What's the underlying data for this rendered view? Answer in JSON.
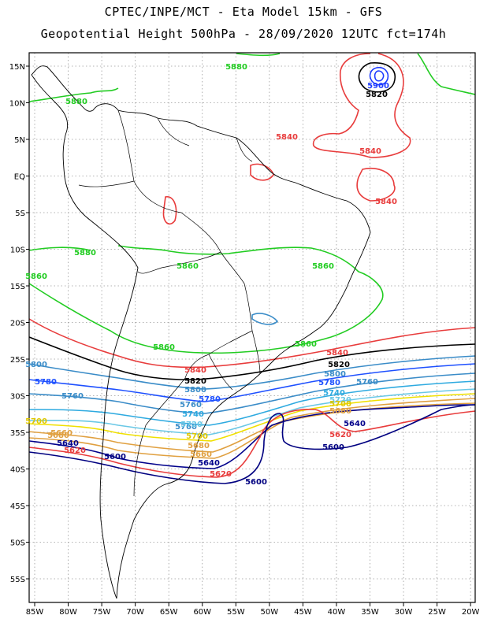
{
  "header": {
    "title_line1": "CPTEC/INPE/MCT -  Eta Model 15km - GFS",
    "title_line2": "Geopotential Height 500hPa - 28/09/2020 12UTC fct=174h"
  },
  "map": {
    "lon_labels": [
      "85W",
      "80W",
      "75W",
      "70W",
      "65W",
      "60W",
      "55W",
      "50W",
      "45W",
      "40W",
      "35W",
      "30W",
      "25W",
      "20W"
    ],
    "lat_labels": [
      "15N",
      "10N",
      "5N",
      "EQ",
      "5S",
      "10S",
      "15S",
      "20S",
      "25S",
      "30S",
      "35S",
      "40S",
      "45S",
      "50S",
      "55S"
    ],
    "grid": "dotted",
    "colors": {
      "5900": "#1e3cff",
      "5880": "#22cc22",
      "5860": "#22cc22",
      "5840": "#e83c3c",
      "5820": "#000000",
      "5800": "#3a8cc8",
      "5780": "#1e50ff",
      "5760": "#3a8cc8",
      "5740": "#2eaae0",
      "5720": "#6ac8e6",
      "5700": "#f0e000",
      "5680": "#e0a040",
      "5660": "#e0a040",
      "5640": "#00008b",
      "5620": "#e83c3c",
      "5600": "#000080",
      "coast": "#000000"
    },
    "contour_labels": [
      {
        "text": "5880",
        "color": "#22cc22"
      },
      {
        "text": "5880",
        "color": "#22cc22"
      },
      {
        "text": "5880",
        "color": "#22cc22"
      },
      {
        "text": "5860",
        "color": "#22cc22"
      },
      {
        "text": "5860",
        "color": "#22cc22"
      },
      {
        "text": "5860",
        "color": "#22cc22"
      },
      {
        "text": "5860",
        "color": "#22cc22"
      },
      {
        "text": "5860",
        "color": "#22cc22"
      },
      {
        "text": "5840",
        "color": "#e83c3c"
      },
      {
        "text": "5840",
        "color": "#e83c3c"
      },
      {
        "text": "5840",
        "color": "#e83c3c"
      },
      {
        "text": "5840",
        "color": "#e83c3c"
      },
      {
        "text": "5840",
        "color": "#e83c3c"
      },
      {
        "text": "5900",
        "color": "#1e3cff"
      },
      {
        "text": "5820",
        "color": "#000000"
      },
      {
        "text": "5820",
        "color": "#000000"
      },
      {
        "text": "5820",
        "color": "#000000"
      },
      {
        "text": "5800",
        "color": "#3a8cc8"
      },
      {
        "text": "5800",
        "color": "#3a8cc8"
      },
      {
        "text": "5800",
        "color": "#3a8cc8"
      },
      {
        "text": "5780",
        "color": "#1e50ff"
      },
      {
        "text": "5780",
        "color": "#1e50ff"
      },
      {
        "text": "5780",
        "color": "#1e50ff"
      },
      {
        "text": "5760",
        "color": "#3a8cc8"
      },
      {
        "text": "5760",
        "color": "#3a8cc8"
      },
      {
        "text": "5760",
        "color": "#3a8cc8"
      },
      {
        "text": "5760",
        "color": "#3a8cc8"
      },
      {
        "text": "5740",
        "color": "#2eaae0"
      },
      {
        "text": "5740",
        "color": "#2eaae0"
      },
      {
        "text": "5720",
        "color": "#6ac8e6"
      },
      {
        "text": "5720",
        "color": "#6ac8e6"
      },
      {
        "text": "5700",
        "color": "#e0c800"
      },
      {
        "text": "5700",
        "color": "#e0c800"
      },
      {
        "text": "5700",
        "color": "#e0c800"
      },
      {
        "text": "5680",
        "color": "#e0a040"
      },
      {
        "text": "5680",
        "color": "#e0a040"
      },
      {
        "text": "5680",
        "color": "#e0a040"
      },
      {
        "text": "5660",
        "color": "#e0a040"
      },
      {
        "text": "5660",
        "color": "#e0a040"
      },
      {
        "text": "5640",
        "color": "#00008b"
      },
      {
        "text": "5640",
        "color": "#00008b"
      },
      {
        "text": "5640",
        "color": "#00008b"
      },
      {
        "text": "5620",
        "color": "#e83c3c"
      },
      {
        "text": "5620",
        "color": "#e83c3c"
      },
      {
        "text": "5620",
        "color": "#e83c3c"
      },
      {
        "text": "5600",
        "color": "#000080"
      },
      {
        "text": "5600",
        "color": "#000080"
      },
      {
        "text": "5600",
        "color": "#000080"
      }
    ]
  }
}
